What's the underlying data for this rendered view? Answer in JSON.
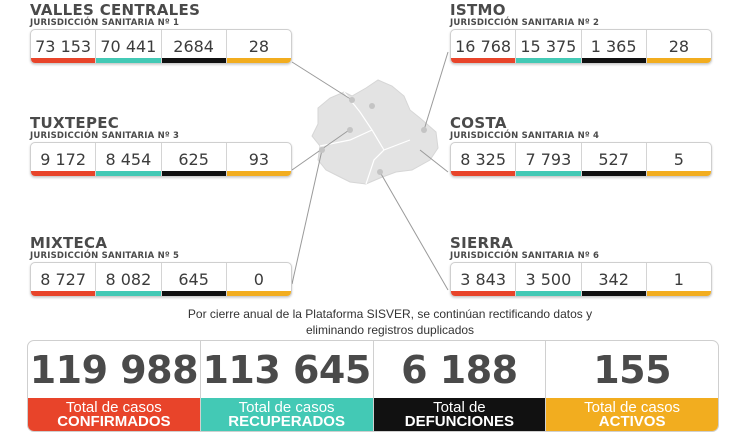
{
  "regions": [
    {
      "name": "VALLES CENTRALES",
      "sub": "JURISDICCIÓN SANITARIA Nº 1",
      "values": [
        "73 153",
        "70 441",
        "2684",
        "28"
      ]
    },
    {
      "name": "ISTMO",
      "sub": "JURISDICCIÓN SANITARIA Nº 2",
      "values": [
        "16 768",
        "15 375",
        "1 365",
        "28"
      ]
    },
    {
      "name": "TUXTEPEC",
      "sub": "JURISDICCIÓN SANITARIA Nº 3",
      "values": [
        "9 172",
        "8 454",
        "625",
        "93"
      ]
    },
    {
      "name": "COSTA",
      "sub": "JURISDICCIÓN SANITARIA Nº 4",
      "values": [
        "8 325",
        "7 793",
        "527",
        "5"
      ]
    },
    {
      "name": "MIXTECA",
      "sub": "JURISDICCIÓN SANITARIA Nº 5",
      "values": [
        "8 727",
        "8 082",
        "645",
        "0"
      ]
    },
    {
      "name": "SIERRA",
      "sub": "JURISDICCIÓN SANITARIA Nº 6",
      "values": [
        "3 843",
        "3 500",
        "342",
        "1"
      ]
    }
  ],
  "notice": {
    "line1": "Por cierre anual de la Plataforma SISVER, se continúan rectificando datos y",
    "line2": "eliminando registros duplicados"
  },
  "totals": [
    {
      "value": "119 988",
      "line1": "Total de casos",
      "line2": "CONFIRMADOS"
    },
    {
      "value": "113 645",
      "line1": "Total de casos",
      "line2": "RECUPERADOS"
    },
    {
      "value": "6 188",
      "line1": "Total de",
      "line2": "DEFUNCIONES"
    },
    {
      "value": "155",
      "line1": "Total de casos",
      "line2": "ACTIVOS"
    }
  ],
  "colors": {
    "confirmed": "#e8442a",
    "recovered": "#43c9b5",
    "deaths": "#111111",
    "active": "#f2ad1f",
    "map": "#e3e3e3"
  }
}
